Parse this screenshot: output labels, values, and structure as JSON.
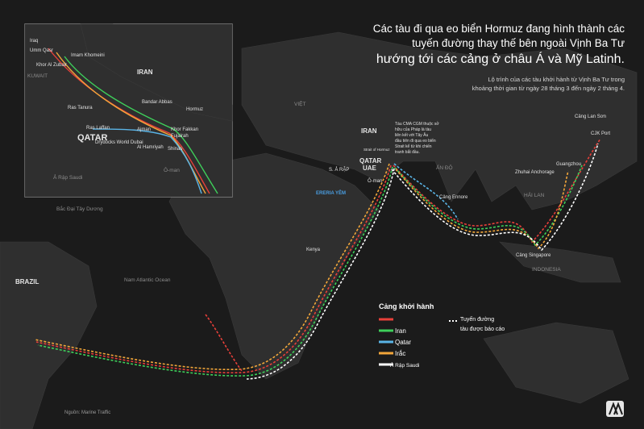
{
  "header": {
    "title_lines": [
      "Các tàu đi qua eo biển Hormuz đang hình thành các",
      "tuyến đường thay thế bên ngoài Vịnh Ba Tư",
      "hướng tới các cảng ở châu Á và Mỹ Latinh."
    ],
    "subtitle_lines": [
      "Lộ trình của các tàu khởi hành từ Vịnh Ba Tư trong",
      "khoảng thời gian từ ngày 28 tháng 3 đến ngày 2 tháng 4."
    ]
  },
  "inset": {
    "labels": [
      "Iraq",
      "Umm Qasr",
      "Imam Khomeini",
      "Khor Al Zubair",
      "KUWAIT",
      "IRAN",
      "Ras Tanura",
      "Bandar Abbas",
      "Hormuz",
      "Ras Laffan",
      "QATAR",
      "Drydocks World Dubai",
      "Ajman",
      "Khor Fakkan",
      "Fujairah",
      "Al Hamriyah",
      "Shinas",
      "Ả Rập Saudi",
      "Ô-man"
    ]
  },
  "map": {
    "labels": [
      "BRAZIL",
      "Nam Atlantic Ocean",
      "Bắc Đại Tây Dương",
      "Kenya",
      "ERERIA YÊM",
      "IRAN",
      "QATAR",
      "UAE",
      "S. Ả RẬP",
      "Ô-man",
      "Strait of Hormuz",
      "ẤN ĐỘ",
      "Cảng Ennore",
      "Cảng Singapore",
      "INDONESIA",
      "Zhuhai Anchorage",
      "Guangzhou",
      "CJK Port",
      "Cảng Lan Sơn",
      "HẢI LAN",
      "VIỆT"
    ],
    "annotation_lines": [
      "Tàu CMA CGM thuộc sở",
      "hữu của Pháp là tàu",
      "liên kết với Tây Âu",
      "đầu tiên đi qua eo biển",
      "Strait kể từ khi chiến",
      "tranh bắt đầu."
    ]
  },
  "legend": {
    "title": "Cảng khởi hành",
    "items": [
      "Iran",
      "Qatar",
      "Irắc",
      "Ả Rập Saudi"
    ],
    "route_lines": [
      "Tuyến đường",
      "tàu được báo cáo"
    ]
  },
  "footer": {
    "source": "Nguồn: Marine Traffic"
  }
}
